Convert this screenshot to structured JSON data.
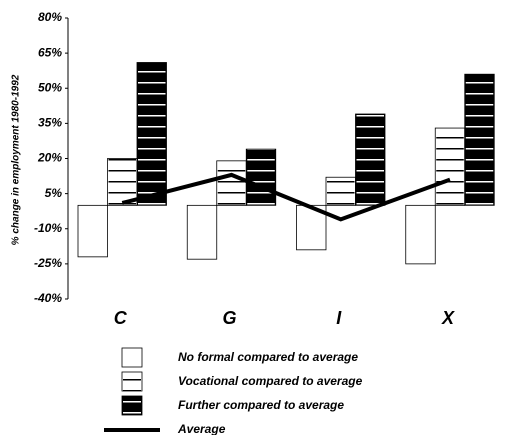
{
  "chart_data": {
    "type": "bar",
    "y_label": "% change in employment 1980-1992",
    "categories": [
      "C",
      "G",
      "I",
      "X"
    ],
    "series": [
      {
        "name": "No formal compared to average",
        "color": "#ffffff",
        "values": [
          -22,
          -23,
          -19,
          -25
        ]
      },
      {
        "name": "Vocational compared to average",
        "color": "#ffffff",
        "values": [
          20,
          19,
          12,
          33
        ]
      },
      {
        "name": "Further compared to average",
        "color": "#000000",
        "values": [
          61,
          24,
          39,
          56
        ]
      },
      {
        "name": "Average",
        "type": "line",
        "color": "#000000",
        "values": [
          1,
          13,
          -6,
          11
        ]
      }
    ],
    "ylim": [
      -40,
      80
    ],
    "yticks": [
      {
        "value": -40,
        "label": "-40%"
      },
      {
        "value": -25,
        "label": "-25%"
      },
      {
        "value": -10,
        "label": "-10%"
      },
      {
        "value": 5,
        "label": "5%"
      },
      {
        "value": 20,
        "label": "20%"
      },
      {
        "value": 35,
        "label": "35%"
      },
      {
        "value": 50,
        "label": "50%"
      },
      {
        "value": 65,
        "label": "65%"
      },
      {
        "value": 80,
        "label": "80%"
      }
    ]
  }
}
